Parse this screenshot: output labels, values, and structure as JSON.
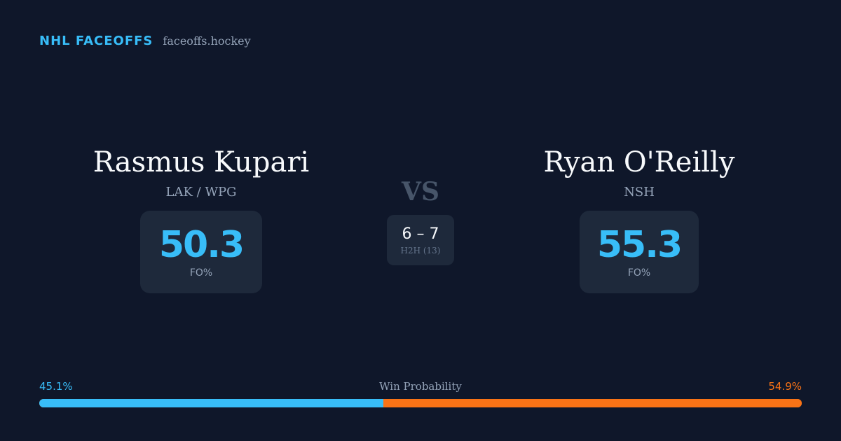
{
  "brand": {
    "name": "NHL FACEOFFS",
    "domain": "faceoffs.hockey"
  },
  "left_player": {
    "name": "Rasmus Kupari",
    "team": "LAK / WPG",
    "fo_pct": "50.3",
    "fo_label": "FO%"
  },
  "right_player": {
    "name": "Ryan O'Reilly",
    "team": "NSH",
    "fo_pct": "55.3",
    "fo_label": "FO%"
  },
  "matchup": {
    "vs_label": "VS",
    "h2h_score": "6 – 7",
    "h2h_label": "H2H (13)"
  },
  "win_probability": {
    "title": "Win Probability",
    "left_pct_label": "45.1%",
    "right_pct_label": "54.9%",
    "left_value": 45.1,
    "right_value": 54.9
  },
  "colors": {
    "background": "#0f172a",
    "accent_left": "#38bdf8",
    "accent_right": "#f97316",
    "card": "#1e293b"
  }
}
